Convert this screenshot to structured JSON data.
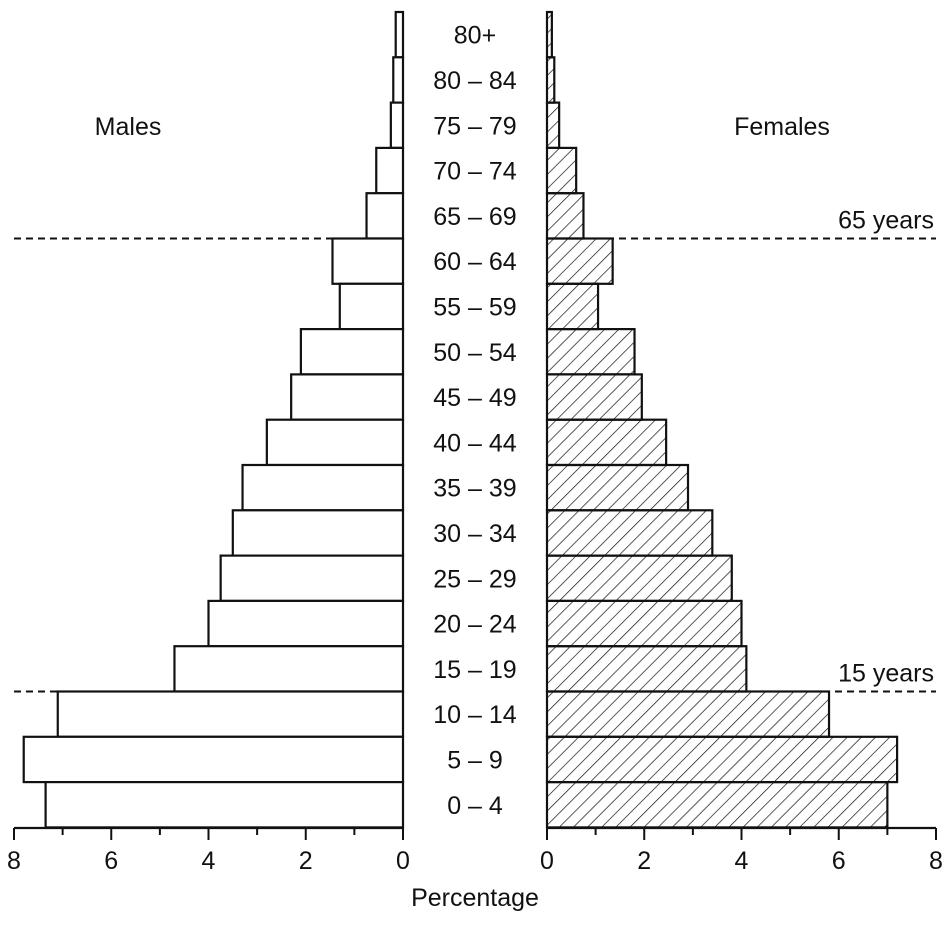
{
  "chart_data": {
    "type": "bar",
    "subtype": "population-pyramid",
    "left_series_label": "Males",
    "right_series_label": "Females",
    "xlabel": "Percentage",
    "xlim": [
      0,
      8
    ],
    "x_ticks": [
      "8",
      "6",
      "4",
      "2",
      "0",
      "0",
      "2",
      "4",
      "6",
      "8"
    ],
    "categories": [
      "80+",
      "80 – 84",
      "75 – 79",
      "70 – 74",
      "65 – 69",
      "60 – 64",
      "55 – 59",
      "50 – 54",
      "45 – 49",
      "40 – 44",
      "35 – 39",
      "30 – 34",
      "25 – 29",
      "20 – 24",
      "15 – 19",
      "10 – 14",
      "5 – 9",
      "0 – 4"
    ],
    "series": [
      {
        "name": "Males",
        "side": "left",
        "fill": "none",
        "values": [
          0.15,
          0.2,
          0.25,
          0.55,
          0.75,
          1.45,
          1.3,
          2.1,
          2.3,
          2.8,
          3.3,
          3.5,
          3.75,
          4.0,
          4.7,
          7.1,
          7.8,
          7.35
        ]
      },
      {
        "name": "Females",
        "side": "right",
        "fill": "hatched",
        "values": [
          0.1,
          0.15,
          0.25,
          0.6,
          0.75,
          1.35,
          1.05,
          1.8,
          1.95,
          2.45,
          2.9,
          3.4,
          3.8,
          4.0,
          4.1,
          5.8,
          7.2,
          7.0
        ]
      }
    ],
    "reference_lines": [
      {
        "label": "65 years",
        "between": [
          "65 – 69",
          "60 – 64"
        ]
      },
      {
        "label": "15 years",
        "between": [
          "15 – 19",
          "10 – 14"
        ]
      }
    ],
    "colors": {
      "stroke": "#111111",
      "background": "#ffffff"
    }
  }
}
